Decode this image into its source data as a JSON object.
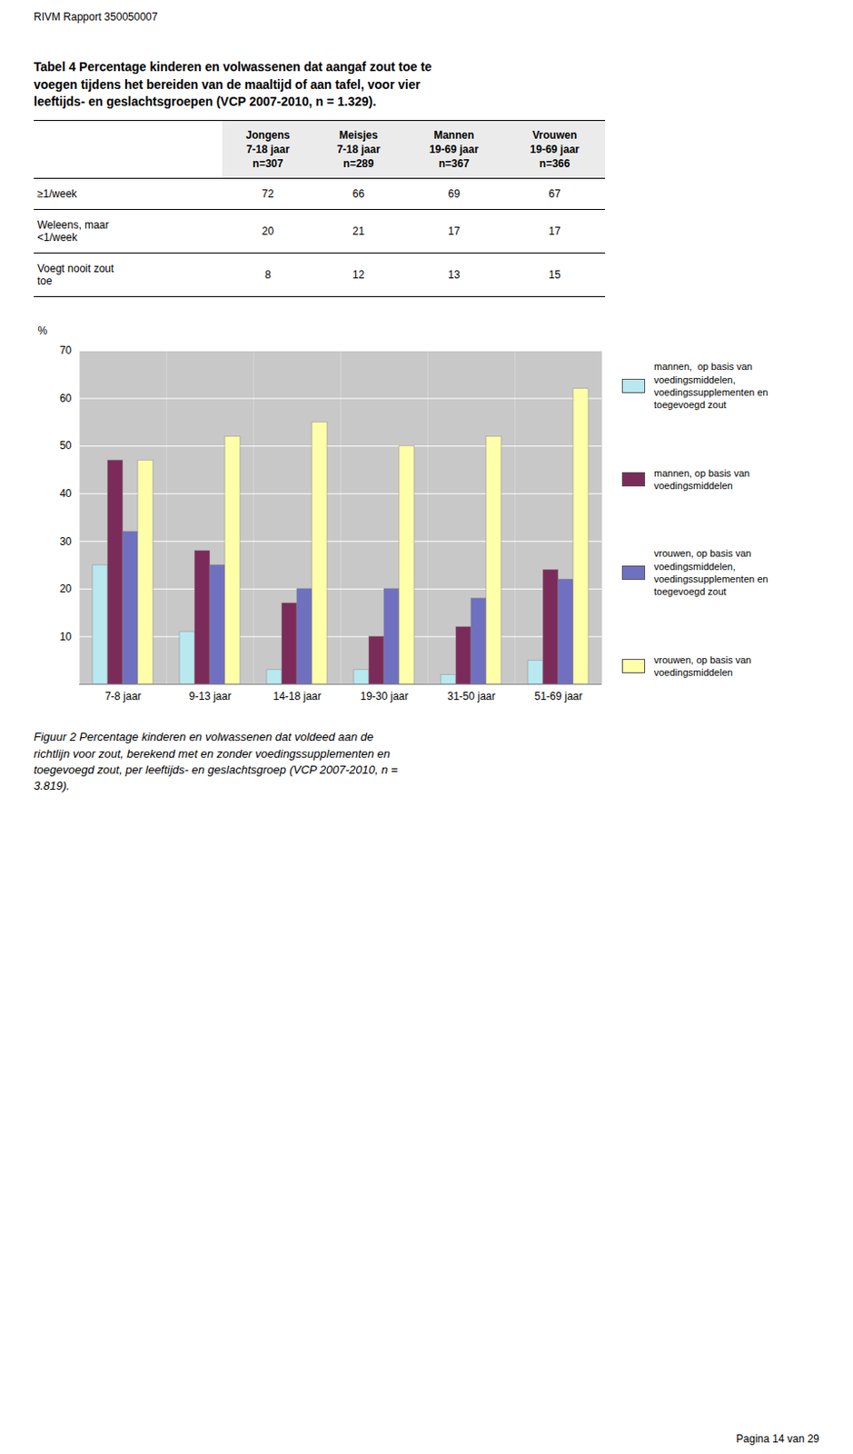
{
  "header": "RIVM Rapport 350050007",
  "footer": "Pagina 14 van 29",
  "chart_data": [
    {
      "type": "table",
      "title": "Tabel 4 Percentage kinderen en volwassenen dat aangaf zout toe te\nvoegen tijdens het bereiden van de maaltijd of aan tafel, voor vier\nleeftijds- en geslachtsgroepen (VCP 2007-2010, n = 1.329).",
      "column_headers": [
        [
          "Jongens",
          "7-18 jaar",
          "n=307"
        ],
        [
          "Meisjes",
          "7-18 jaar",
          "n=289"
        ],
        [
          "Mannen",
          "19-69 jaar",
          "n=367"
        ],
        [
          "Vrouwen",
          "19-69 jaar",
          "n=366"
        ]
      ],
      "row_labels": [
        "≥1/week",
        "Weleens, maar\n<1/week",
        "Voegt nooit zout\ntoe"
      ],
      "values": [
        [
          72,
          66,
          69,
          67
        ],
        [
          20,
          21,
          17,
          17
        ],
        [
          8,
          12,
          13,
          15
        ]
      ]
    },
    {
      "type": "bar",
      "caption": "Figuur 2 Percentage kinderen en volwassenen dat voldeed aan de\nrichtlijn voor zout, berekend met en zonder voedingssupplementen en\ntoegevoegd zout, per leeftijds- en geslachtsgroep (VCP 2007-2010, n =\n3.819).",
      "categories": [
        "7-8 jaar",
        "9-13 jaar",
        "14-18 jaar",
        "19-30 jaar",
        "31-50 jaar",
        "51-69 jaar"
      ],
      "series": [
        {
          "name": "mannen,  op basis van\nvoedingsmiddelen,\nvoedingssupplementen en\ntoegevoegd zout",
          "color": "#B8E8F0",
          "values": [
            25,
            11,
            3,
            3,
            2,
            5
          ]
        },
        {
          "name": "mannen, op basis van\nvoedingsmiddelen",
          "color": "#7B2B5A",
          "values": [
            47,
            28,
            17,
            10,
            12,
            24
          ]
        },
        {
          "name": "vrouwen, op basis van\nvoedingsmiddelen,\nvoedingssupplementen en\ntoegevoegd zout",
          "color": "#7070C0",
          "values": [
            32,
            25,
            20,
            20,
            18,
            22
          ]
        },
        {
          "name": "vrouwen, op basis van\nvoedingsmiddelen",
          "color": "#FFFFAA",
          "values": [
            47,
            52,
            55,
            50,
            52,
            62
          ]
        }
      ],
      "ylabel": "%",
      "ylim": [
        0,
        70
      ],
      "yticks": [
        10,
        20,
        30,
        40,
        50,
        60,
        70
      ],
      "grid": true,
      "legend": "right"
    }
  ]
}
